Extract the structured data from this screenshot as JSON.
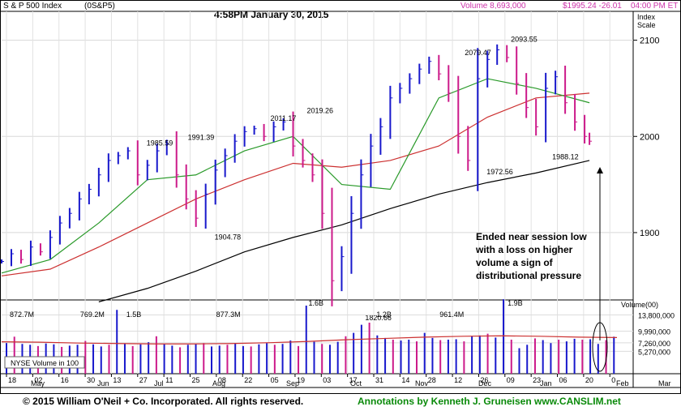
{
  "header": {
    "index_name": "S & P 500 Index",
    "symbol": "(0S&P5)",
    "timestamp": "4:58PM January 30, 2015",
    "volume_text": "Volume 8,693,000",
    "price_text": "$1995.24 -26.01",
    "time_text": "04:00 PM ET",
    "scale_label_1": "Index",
    "scale_label_2": "Scale"
  },
  "colors": {
    "up": "#1818cc",
    "down": "#cc1a8a",
    "ma50": "#2a9a2a",
    "ma200": "#cc3030",
    "long_ma": "#000000",
    "header_pink": "#cc33aa"
  },
  "chart_data": [
    {
      "type": "line",
      "title": "S & P 500 Index",
      "ylabel": "Index Scale",
      "ylim": [
        1830,
        2130
      ],
      "y_ticks": [
        "2100",
        "2000",
        "1900"
      ],
      "x_tick_labels": [
        "18",
        "02",
        "16",
        "30",
        "13",
        "27",
        "11",
        "25",
        "08",
        "22",
        "05",
        "19",
        "03",
        "17",
        "31",
        "14",
        "28",
        "12",
        "26",
        "09",
        "23",
        "06",
        "20",
        "0"
      ],
      "month_labels": [
        "May",
        "Jun",
        "Jul",
        "Aug",
        "Sep",
        "Oct",
        "Nov",
        "Dec",
        "Jan",
        "Feb",
        "Mar"
      ],
      "series": [
        {
          "name": "price",
          "x": [
            0,
            4,
            8,
            12,
            16,
            20,
            24,
            28,
            32,
            36,
            40,
            44,
            48,
            52,
            56,
            60,
            64,
            68,
            72,
            76,
            80,
            84,
            88,
            92,
            96,
            100,
            104,
            108,
            112,
            116,
            120,
            124,
            128,
            132,
            136,
            140,
            144,
            148,
            152,
            156,
            160,
            164,
            168,
            172,
            176,
            180,
            184,
            188,
            192,
            196,
            200,
            204,
            208,
            212,
            216,
            220,
            224,
            228,
            232,
            236,
            240,
            242
          ],
          "y": [
            1870,
            1878,
            1872,
            1885,
            1880,
            1895,
            1910,
            1920,
            1935,
            1945,
            1960,
            1975,
            1980,
            1985,
            1960,
            1970,
            1985,
            1992,
            1960,
            1935,
            1915,
            1940,
            1965,
            1980,
            1995,
            2005,
            2008,
            2000,
            2010,
            2015,
            1990,
            1975,
            1960,
            1920,
            1850,
            1875,
            1920,
            1960,
            1990,
            2010,
            2040,
            2050,
            2060,
            2070,
            2078,
            2065,
            2045,
            2000,
            1975,
            2060,
            2080,
            2090,
            2082,
            2055,
            2030,
            2010,
            2050,
            2062,
            2035,
            2015,
            2000,
            1995
          ]
        },
        {
          "name": "ma50",
          "x": [
            0,
            20,
            40,
            60,
            80,
            100,
            120,
            140,
            160,
            180,
            200,
            220,
            242
          ],
          "y": [
            1858,
            1872,
            1910,
            1955,
            1960,
            1985,
            2000,
            1950,
            1945,
            2040,
            2060,
            2050,
            2035
          ]
        },
        {
          "name": "ma200",
          "x": [
            0,
            20,
            40,
            60,
            80,
            100,
            120,
            140,
            160,
            180,
            200,
            220,
            242
          ],
          "y": [
            1855,
            1862,
            1885,
            1910,
            1935,
            1955,
            1972,
            1968,
            1975,
            1990,
            2020,
            2040,
            2045
          ]
        },
        {
          "name": "long_ma",
          "x": [
            40,
            60,
            80,
            100,
            120,
            140,
            160,
            180,
            200,
            220,
            242
          ],
          "y": [
            1828,
            1842,
            1860,
            1880,
            1895,
            1908,
            1925,
            1940,
            1952,
            1962,
            1975
          ]
        }
      ],
      "annotations": [
        {
          "label": "1985.59",
          "x": 65,
          "y": 1985.59
        },
        {
          "label": "1991.39",
          "x": 82,
          "y": 1991.39
        },
        {
          "label": "1904.78",
          "x": 93,
          "y": 1904.78
        },
        {
          "label": "2011.17",
          "x": 116,
          "y": 2011.17
        },
        {
          "label": "2019.26",
          "x": 131,
          "y": 2019.26
        },
        {
          "label": "1820.66",
          "x": 155,
          "y": 1820.66
        },
        {
          "label": "2079.47",
          "x": 196,
          "y": 2079.47
        },
        {
          "label": "2093.55",
          "x": 215,
          "y": 2093.55
        },
        {
          "label": "1972.56",
          "x": 205,
          "y": 1972.56
        },
        {
          "label": "1988.12",
          "x": 232,
          "y": 1988.12
        }
      ]
    },
    {
      "type": "bar",
      "title": "NYSE Volume in 100",
      "ylabel": "Volume(00)",
      "y_ticks": [
        "13,800,000",
        "9,990,000",
        "7,260,000",
        "5,270,000"
      ],
      "ylim": [
        0,
        16000000
      ],
      "bar_labels": [
        {
          "label": "872.7M",
          "x": 8
        },
        {
          "label": "769.2M",
          "x": 37
        },
        {
          "label": "1.5B",
          "x": 56
        },
        {
          "label": "877.3M",
          "x": 93
        },
        {
          "label": "1.6B",
          "x": 131
        },
        {
          "label": "1.2B",
          "x": 159
        },
        {
          "label": "961.4M",
          "x": 185
        },
        {
          "label": "1.9B",
          "x": 213
        }
      ],
      "volume": [
        7.2,
        8.7,
        7.0,
        6.8,
        6.5,
        7.1,
        6.9,
        6.3,
        6.6,
        6.8,
        7.7,
        6.9,
        6.4,
        6.8,
        15.0,
        7.0,
        6.5,
        6.9,
        7.4,
        8.8,
        7.0,
        6.6,
        6.2,
        6.8,
        7.0,
        7.2,
        6.4,
        6.6,
        6.8,
        7.1,
        6.5,
        6.4,
        6.9,
        7.2,
        6.8,
        7.0,
        7.8,
        6.5,
        16.0,
        7.5,
        7.0,
        6.8,
        7.5,
        8.8,
        9.6,
        11.5,
        12.0,
        9.0,
        8.4,
        8.0,
        7.8,
        8.0,
        7.6,
        9.6,
        8.4,
        7.9,
        8.0,
        8.1,
        7.6,
        8.8,
        9.0,
        9.4,
        8.5,
        17.5,
        8.0,
        6.0,
        6.8,
        8.3,
        7.9,
        7.2,
        8.0,
        7.6,
        8.2,
        8.0,
        8.1,
        7.0,
        7.9,
        8.7
      ],
      "ma_volume": [
        7.5,
        7.4,
        7.2,
        7.1,
        7.0,
        7.0,
        7.1,
        7.3,
        7.6,
        8.0,
        8.3,
        8.6,
        8.8,
        8.9,
        8.8,
        8.6,
        8.5
      ]
    }
  ],
  "volume_panel": {
    "legend": "NYSE Volume in 100",
    "axis_title": "Volume(00)"
  },
  "annotation": {
    "text": "Ended near session low with a loss on higher volume a sign of distributional pressure"
  },
  "footer": {
    "copyright": "© 2015  William O'Neil + Co. Incorporated. All rights reserved.",
    "credit": "Annotations by Kenneth J. Gruneisen www.CANSLIM.net"
  }
}
